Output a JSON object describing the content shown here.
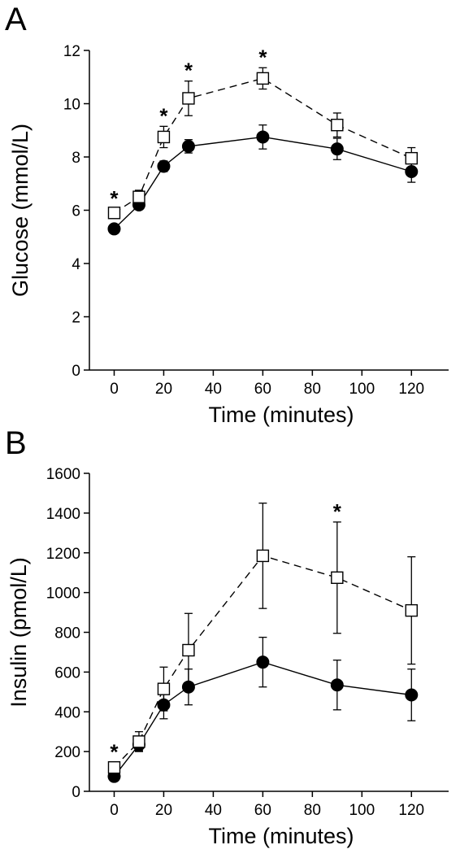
{
  "colors": {
    "axis": "#000000",
    "filled_marker": "#000000",
    "open_marker_fill": "#ffffff",
    "open_marker_stroke": "#000000"
  },
  "chart_data": [
    {
      "panel": "A",
      "type": "line",
      "xlabel": "Time (minutes)",
      "ylabel": "Glucose (mmol/L)",
      "xlim": [
        -10,
        135
      ],
      "ylim": [
        0,
        12
      ],
      "x_ticks": [
        0,
        20,
        40,
        60,
        80,
        100,
        120
      ],
      "y_ticks": [
        0,
        2,
        4,
        6,
        8,
        10,
        12
      ],
      "grid": false,
      "x": [
        0,
        10,
        20,
        30,
        60,
        90,
        120
      ],
      "series": [
        {
          "marker": "filled-circle",
          "line": "solid",
          "values": [
            5.3,
            6.2,
            7.65,
            8.4,
            8.75,
            8.3,
            7.45
          ],
          "error": [
            0.1,
            0.15,
            0.2,
            0.25,
            0.45,
            0.4,
            0.4
          ]
        },
        {
          "marker": "open-square",
          "line": "dashed",
          "values": [
            5.9,
            6.5,
            8.75,
            10.2,
            10.95,
            9.2,
            7.95
          ],
          "error": [
            0.15,
            0.25,
            0.4,
            0.65,
            0.4,
            0.45,
            0.4
          ]
        }
      ],
      "significance": [
        {
          "x": 0,
          "label": "*"
        },
        {
          "x": 20,
          "label": "*"
        },
        {
          "x": 30,
          "label": "*"
        },
        {
          "x": 60,
          "label": "*"
        }
      ]
    },
    {
      "panel": "B",
      "type": "line",
      "xlabel": "Time (minutes)",
      "ylabel": "Insulin (pmol/L)",
      "xlim": [
        -10,
        135
      ],
      "ylim": [
        0,
        1600
      ],
      "x_ticks": [
        0,
        20,
        40,
        60,
        80,
        100,
        120
      ],
      "y_ticks": [
        0,
        200,
        400,
        600,
        800,
        1000,
        1200,
        1400,
        1600
      ],
      "grid": false,
      "x": [
        0,
        10,
        20,
        30,
        60,
        90,
        120
      ],
      "series": [
        {
          "marker": "filled-circle",
          "line": "solid",
          "values": [
            75,
            235,
            435,
            525,
            650,
            535,
            485
          ],
          "error": [
            15,
            30,
            70,
            90,
            125,
            125,
            130
          ]
        },
        {
          "marker": "open-square",
          "line": "dashed",
          "values": [
            120,
            250,
            515,
            710,
            1185,
            1075,
            910
          ],
          "error": [
            25,
            50,
            110,
            185,
            265,
            280,
            270
          ]
        }
      ],
      "significance": [
        {
          "x": 0,
          "label": "*"
        },
        {
          "x": 90,
          "label": "*"
        }
      ]
    }
  ]
}
